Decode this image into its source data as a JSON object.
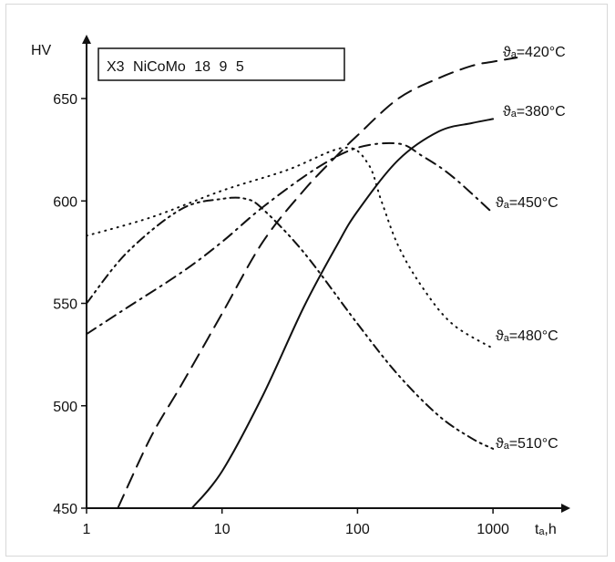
{
  "chart_data": {
    "type": "line",
    "title": "X3 NiCoMo 18 9 5",
    "ylabel": "HV",
    "xlabel": "tₐ,h",
    "xscale": "log",
    "xlim": [
      1,
      2000
    ],
    "ylim": [
      450,
      680
    ],
    "xticks": [
      1,
      10,
      100,
      1000
    ],
    "xtick_labels": [
      "1",
      "10",
      "100",
      "1000"
    ],
    "yticks": [
      450,
      500,
      550,
      600,
      650
    ],
    "ytick_labels": [
      "450",
      "500",
      "550",
      "600",
      "650"
    ],
    "grid": false,
    "legend": "inline labels at curve ends",
    "series": [
      {
        "name": "ϑₐ=420°C",
        "style": "dashed",
        "x": [
          1.7,
          3,
          5,
          10,
          20,
          40,
          70,
          100,
          200,
          400,
          700,
          1000,
          1500
        ],
        "y": [
          450,
          485,
          510,
          545,
          580,
          605,
          622,
          632,
          650,
          660,
          666,
          668,
          670
        ]
      },
      {
        "name": "ϑₐ=380°C",
        "style": "solid",
        "x": [
          6,
          10,
          20,
          40,
          70,
          100,
          200,
          400,
          700,
          1000
        ],
        "y": [
          450,
          468,
          505,
          548,
          578,
          595,
          620,
          634,
          638,
          640
        ]
      },
      {
        "name": "ϑₐ=450°C",
        "style": "dash-dot",
        "x": [
          1,
          2,
          5,
          10,
          20,
          50,
          100,
          200,
          300,
          500,
          1000
        ],
        "y": [
          535,
          548,
          565,
          580,
          597,
          616,
          626,
          628,
          622,
          612,
          594
        ]
      },
      {
        "name": "ϑₐ=480°C",
        "style": "dotted",
        "x": [
          1,
          3,
          10,
          30,
          80,
          120,
          150,
          200,
          300,
          500,
          1000
        ],
        "y": [
          583,
          592,
          605,
          615,
          626,
          618,
          600,
          578,
          558,
          540,
          528
        ]
      },
      {
        "name": "ϑₐ=510°C",
        "style": "dash-dot-dot",
        "x": [
          1,
          2,
          5,
          10,
          15,
          20,
          40,
          100,
          200,
          400,
          700,
          1000
        ],
        "y": [
          550,
          575,
          596,
          601,
          601,
          596,
          575,
          540,
          515,
          495,
          484,
          479
        ]
      }
    ]
  }
}
